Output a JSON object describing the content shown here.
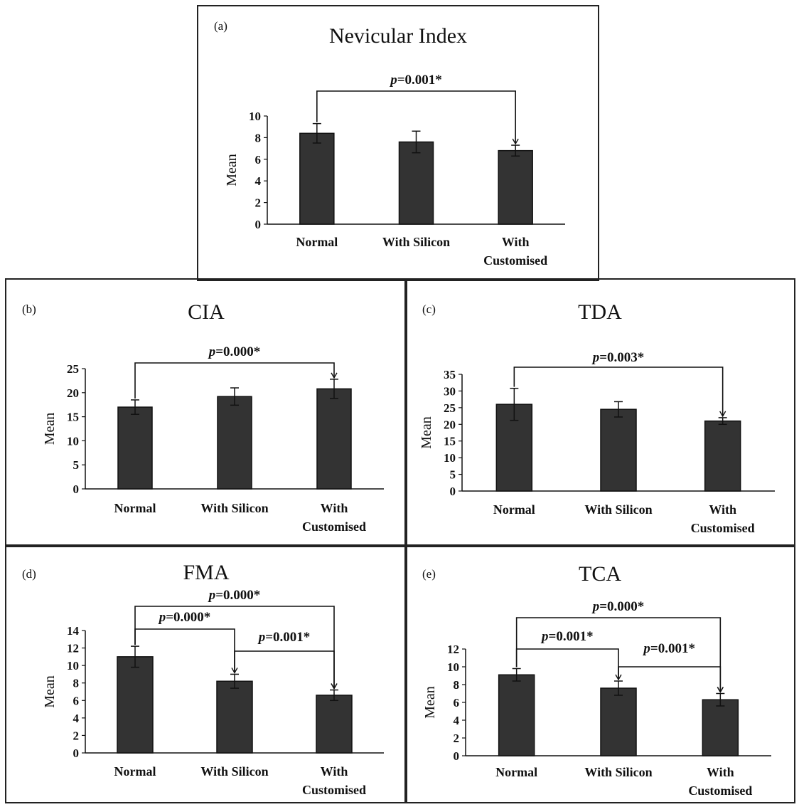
{
  "colors": {
    "bar": "#333333",
    "bar_edge": "#111111",
    "frame": "#222222",
    "background": "#ffffff"
  },
  "chart_data": [
    {
      "panel": "(a)",
      "type": "bar",
      "title": "Nevicular Index",
      "ylabel": "Mean",
      "categories": [
        "Normal",
        "With Silicon",
        "With Customised"
      ],
      "category_lines": [
        [
          "Normal"
        ],
        [
          "With Silicon"
        ],
        [
          "With",
          "Customised"
        ]
      ],
      "values": [
        8.4,
        7.6,
        6.8
      ],
      "errors": [
        0.9,
        1.0,
        0.5
      ],
      "ylim": [
        0,
        10
      ],
      "yticks": [
        "0",
        "2",
        "4",
        "6",
        "8",
        "10"
      ],
      "comparisons": [
        {
          "from": 0,
          "to": 2,
          "label": "p=0.001*"
        }
      ]
    },
    {
      "panel": "(b)",
      "type": "bar",
      "title": "CIA",
      "ylabel": "Mean",
      "categories": [
        "Normal",
        "With Silicon",
        "With Customised"
      ],
      "category_lines": [
        [
          "Normal"
        ],
        [
          "With Silicon"
        ],
        [
          "With",
          "Customised"
        ]
      ],
      "values": [
        17.0,
        19.2,
        20.8
      ],
      "errors": [
        1.5,
        1.8,
        2.0
      ],
      "ylim": [
        0,
        25
      ],
      "yticks": [
        "0",
        "5",
        "10",
        "15",
        "20",
        "25"
      ],
      "comparisons": [
        {
          "from": 0,
          "to": 2,
          "label": "p=0.000*"
        }
      ]
    },
    {
      "panel": "(c)",
      "type": "bar",
      "title": "TDA",
      "ylabel": "Mean",
      "categories": [
        "Normal",
        "With Silicon",
        "With Customised"
      ],
      "category_lines": [
        [
          "Normal"
        ],
        [
          "With Silicon"
        ],
        [
          "With",
          "Customised"
        ]
      ],
      "values": [
        26.0,
        24.5,
        21.0
      ],
      "errors": [
        4.8,
        2.3,
        1.0
      ],
      "ylim": [
        0,
        35
      ],
      "yticks": [
        "0",
        "5",
        "10",
        "15",
        "20",
        "25",
        "30",
        "35"
      ],
      "comparisons": [
        {
          "from": 0,
          "to": 2,
          "label": "p=0.003*"
        }
      ]
    },
    {
      "panel": "(d)",
      "type": "bar",
      "title": "FMA",
      "ylabel": "Mean",
      "categories": [
        "Normal",
        "With Silicon",
        "With Customised"
      ],
      "category_lines": [
        [
          "Normal"
        ],
        [
          "With Silicon"
        ],
        [
          "With",
          "Customised"
        ]
      ],
      "values": [
        11.0,
        8.2,
        6.6
      ],
      "errors": [
        1.2,
        0.8,
        0.6
      ],
      "ylim": [
        0,
        14
      ],
      "yticks": [
        "0",
        "2",
        "4",
        "6",
        "8",
        "10",
        "12",
        "14"
      ],
      "comparisons": [
        {
          "from": 0,
          "to": 2,
          "label": "p=0.000*"
        },
        {
          "from": 0,
          "to": 1,
          "label": "p=0.000*"
        },
        {
          "from": 1,
          "to": 2,
          "label": "p=0.001*"
        }
      ]
    },
    {
      "panel": "(e)",
      "type": "bar",
      "title": "TCA",
      "ylabel": "Mean",
      "categories": [
        "Normal",
        "With Silicon",
        "With Customised"
      ],
      "category_lines": [
        [
          "Normal"
        ],
        [
          "With Silicon"
        ],
        [
          "With",
          "Customised"
        ]
      ],
      "values": [
        9.1,
        7.6,
        6.3
      ],
      "errors": [
        0.7,
        0.8,
        0.7
      ],
      "ylim": [
        0,
        12
      ],
      "yticks": [
        "0",
        "2",
        "4",
        "6",
        "8",
        "10",
        "12"
      ],
      "comparisons": [
        {
          "from": 0,
          "to": 2,
          "label": "p=0.000*"
        },
        {
          "from": 0,
          "to": 1,
          "label": "p=0.001*"
        },
        {
          "from": 1,
          "to": 2,
          "label": "p=0.001*"
        }
      ]
    }
  ]
}
